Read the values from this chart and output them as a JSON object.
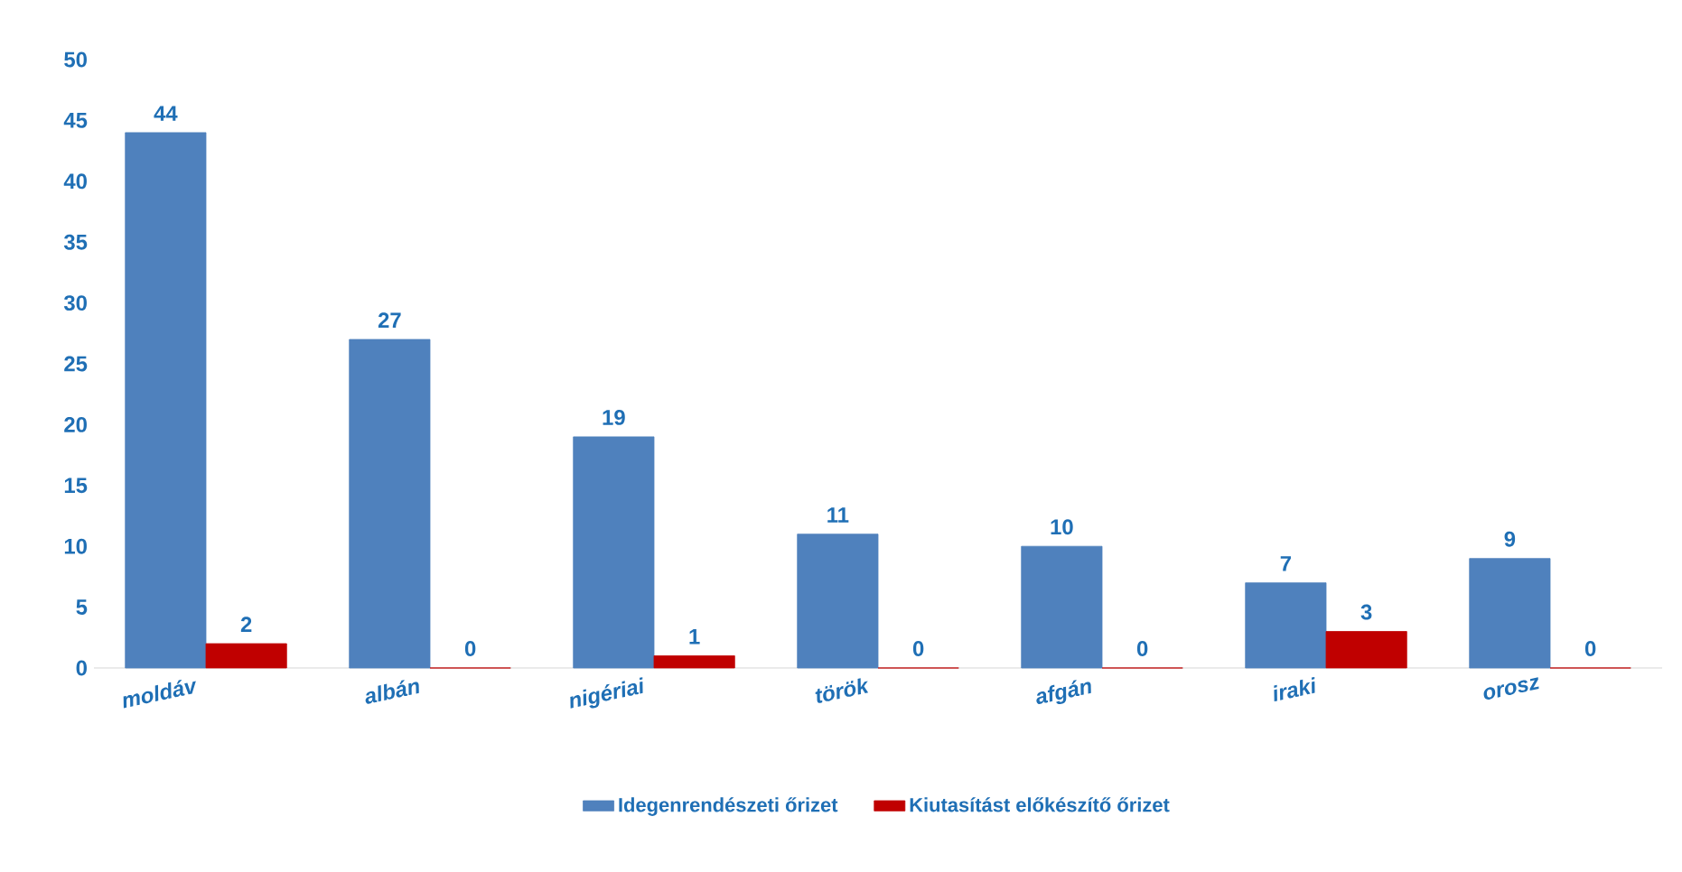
{
  "chart_data": {
    "type": "bar",
    "categories": [
      "moldáv",
      "albán",
      "nigériai",
      "török",
      "afgán",
      "iraki",
      "orosz"
    ],
    "series": [
      {
        "name": "Idegenrendészeti őrizet",
        "color": "#4f81bd",
        "values": [
          44,
          27,
          19,
          11,
          10,
          7,
          9
        ]
      },
      {
        "name": "Kiutasítást előkészítő őrizet",
        "color": "#c00000",
        "values": [
          2,
          0,
          1,
          0,
          0,
          3,
          0
        ]
      }
    ],
    "ylim": [
      0,
      50
    ],
    "yticks": [
      0,
      5,
      10,
      15,
      20,
      25,
      30,
      35,
      40,
      45,
      50
    ],
    "data_labels": true,
    "legend": "bottom"
  }
}
